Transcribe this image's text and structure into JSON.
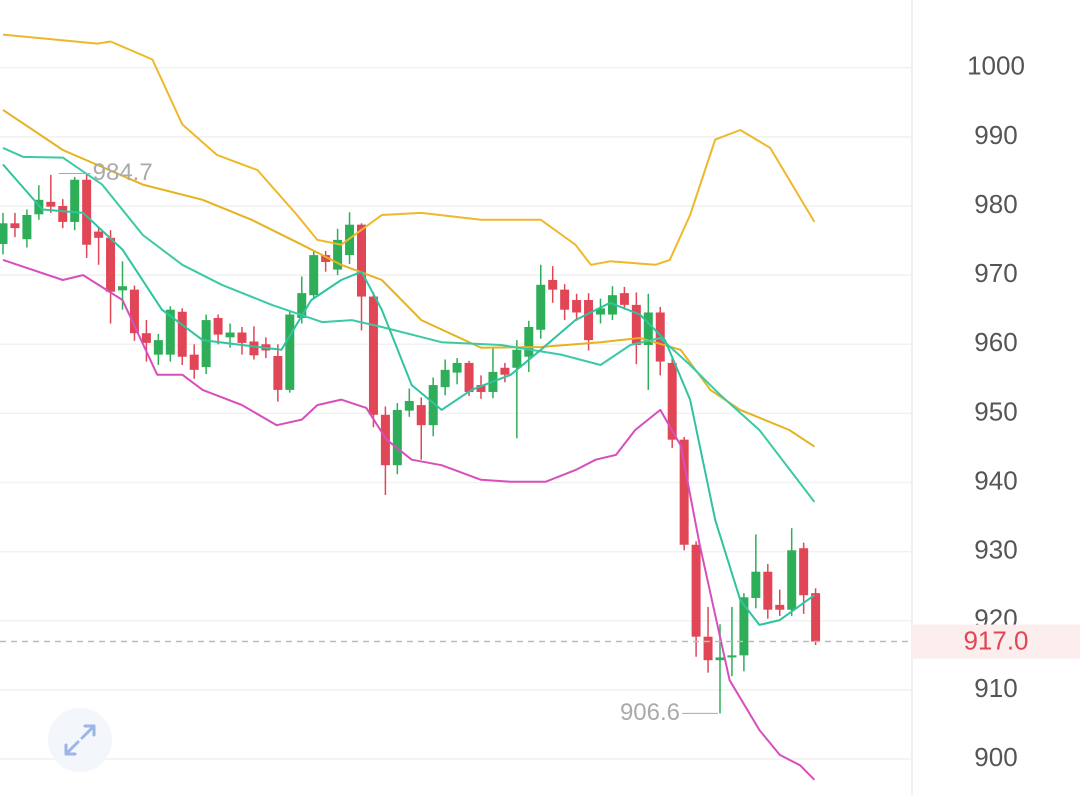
{
  "chart_data": {
    "type": "candlestick",
    "open": [
      974.5,
      977.5,
      975.2,
      978.8,
      980.6,
      980,
      977.7,
      983.8,
      976.3,
      975.4,
      967.8,
      967.9,
      961.6,
      958.5,
      958.5,
      964.7,
      958.5,
      956.7,
      963.8,
      961,
      961.7,
      960.4,
      960,
      958.3,
      953.4,
      963.8,
      967.1,
      972.9,
      970.8,
      972.9,
      977.3,
      966.9,
      949.8,
      942.5,
      950.4,
      951.2,
      948.3,
      953.8,
      955.9,
      957.3,
      954.1,
      953.1,
      956.6,
      956.6,
      958.2,
      962.1,
      969.3,
      967.9,
      966.4,
      966.4,
      964.3,
      964.3,
      967.4,
      965.7,
      959.9,
      964.6,
      957.3,
      946.2,
      931,
      917.7,
      914.3,
      914.7,
      915,
      923.3,
      927.1,
      922.3,
      921.6,
      930.5,
      924
    ],
    "high": [
      979,
      979,
      979.5,
      983,
      984.5,
      981,
      984.2,
      984.7,
      977,
      976.5,
      972,
      968.5,
      963.5,
      961.5,
      965.5,
      965.2,
      960,
      964.3,
      964.3,
      963,
      962.5,
      962.6,
      961,
      960,
      964.8,
      969.8,
      973.4,
      973.5,
      976.7,
      979.1,
      977.5,
      967.5,
      951,
      951.5,
      953.6,
      952.3,
      955.2,
      957.8,
      958,
      957.6,
      955.5,
      959.5,
      957.3,
      960.6,
      963.4,
      971.5,
      971.3,
      968.7,
      967.3,
      967.4,
      966.6,
      968.4,
      968.3,
      967.5,
      967.3,
      965.4,
      958,
      946.6,
      931.5,
      922,
      919.5,
      922,
      924,
      932.5,
      928.2,
      924.5,
      933.4,
      931.3,
      924.7
    ],
    "low": [
      973,
      975.5,
      974,
      978,
      979,
      976.8,
      976.5,
      972.5,
      971.5,
      963,
      965,
      960.5,
      957.5,
      957,
      957.5,
      957,
      955,
      955.7,
      960,
      959.5,
      958.5,
      957.8,
      958,
      951.7,
      953,
      963,
      966.5,
      970.5,
      970,
      971.6,
      962,
      948,
      938.2,
      941.2,
      949.5,
      943.3,
      946.7,
      952.6,
      954.2,
      952.5,
      952.1,
      952.2,
      954.5,
      946.4,
      956,
      960.8,
      966,
      963.5,
      963.4,
      959.1,
      963,
      963.5,
      965,
      957.1,
      953.4,
      955.5,
      945,
      930.2,
      914.8,
      912.5,
      906.6,
      912,
      912.7,
      921.8,
      920.3,
      920.7,
      920.7,
      921,
      916.5
    ],
    "close": [
      977.5,
      976.8,
      978.7,
      980.9,
      979.9,
      977.7,
      983.8,
      974.4,
      975.4,
      967.6,
      968.4,
      961.6,
      960.2,
      960.6,
      965,
      958.2,
      956.3,
      963.5,
      961.4,
      961.7,
      960.2,
      958.4,
      959.1,
      953.4,
      964.3,
      967.4,
      972.9,
      971.9,
      975.1,
      977.3,
      966.9,
      949.8,
      942.5,
      950.5,
      951.8,
      948.3,
      954.1,
      956.3,
      957.3,
      953.1,
      953.1,
      956,
      955.6,
      959.2,
      962.5,
      968.6,
      967.9,
      965,
      964.6,
      960.6,
      965.2,
      967.1,
      965.7,
      959.9,
      964.6,
      957.5,
      946.2,
      931,
      917.7,
      914.3,
      914.7,
      915,
      923.4,
      927.1,
      921.6,
      921.6,
      930.2,
      923.7,
      917
    ],
    "up_color": "#2fae5a",
    "down_color": "#e04656",
    "lines": [
      {
        "color": "#efb82a",
        "x": [
          0,
          7.9,
          9,
          12.5,
          15,
          17.9,
          21.3,
          24.6,
          26.3,
          28.3,
          31.7,
          35,
          40,
          45,
          47.9,
          49.2,
          50.8,
          54.6,
          55.8,
          57.5,
          59.6,
          61.7,
          64.2,
          67.9
        ],
        "values": [
          1004.8,
          1003.5,
          1003.8,
          1001.2,
          991.8,
          987.4,
          985.2,
          978.7,
          975.1,
          974.4,
          978.7,
          979,
          978,
          978,
          974.4,
          971.5,
          972,
          971.5,
          972.2,
          978.7,
          989.6,
          991,
          988.4,
          977.7
        ]
      },
      {
        "color": "#e6b21e",
        "x": [
          0,
          5,
          11.7,
          16.7,
          20.8,
          25,
          28.3,
          31.7,
          35,
          40,
          45,
          50,
          53.3,
          56.7,
          59.2,
          61.7,
          65.8,
          67.9
        ],
        "values": [
          993.9,
          988.1,
          983.1,
          980.9,
          978,
          974.4,
          971.5,
          969.3,
          963.5,
          959.5,
          959.6,
          960.3,
          960.9,
          959.2,
          953.4,
          950.5,
          947.6,
          945.2
        ]
      },
      {
        "color": "#3cc9a6",
        "x": [
          0,
          1.7,
          5,
          8.3,
          11.7,
          15,
          18.3,
          22.5,
          26.7,
          29.2,
          31.7,
          36.7,
          41.7,
          46.7,
          50,
          52.5,
          55,
          57.5,
          60,
          63.3,
          67.9
        ],
        "values": [
          988.4,
          987.1,
          987,
          983.1,
          975.8,
          971.5,
          968.6,
          965.7,
          963.2,
          963.5,
          962.5,
          960.3,
          959.9,
          958.5,
          957,
          959.9,
          960.9,
          957,
          952.7,
          947.6,
          937.2
        ]
      },
      {
        "color": "#2fc3a0",
        "x": [
          0,
          3.3,
          6.7,
          10,
          13.3,
          16.7,
          20,
          23.3,
          25.8,
          28.3,
          30,
          31.7,
          34.2,
          36.7,
          39.2,
          42.5,
          45,
          47.9,
          50.8,
          53.3,
          55.4,
          57.5,
          59.6,
          61.7,
          63.3,
          65,
          67.9
        ],
        "values": [
          986,
          979.5,
          979,
          973.7,
          965,
          960.6,
          959.9,
          959.2,
          966.4,
          969.3,
          970.5,
          965,
          954.1,
          950.5,
          953.4,
          955.6,
          959.2,
          963.5,
          966,
          964.3,
          960.6,
          952,
          934.6,
          923,
          919.4,
          920.1,
          923.7
        ]
      },
      {
        "color": "#d64fbd",
        "x": [
          0,
          5,
          6.7,
          10,
          12.9,
          15,
          16.7,
          20,
          22.9,
          25,
          26.3,
          28.3,
          30.4,
          32.1,
          34.2,
          36.7,
          40,
          42.5,
          45.4,
          47.9,
          49.6,
          51.3,
          52.9,
          55,
          56.7,
          58.3,
          60.8,
          63.3,
          65,
          66.7,
          67.9
        ],
        "values": [
          972.2,
          969.3,
          970,
          966.4,
          955.6,
          955.6,
          953.4,
          951.2,
          948.3,
          949.1,
          951.2,
          952,
          950.8,
          946.2,
          943.3,
          942.5,
          940.4,
          940.1,
          940.1,
          941.8,
          943.3,
          944,
          947.6,
          950.5,
          945.4,
          931,
          911.4,
          904.2,
          900.6,
          899.1,
          897
        ]
      }
    ],
    "ylim": [
      894.8,
      1009.8
    ],
    "yticks": [
      900,
      910,
      920,
      930,
      940,
      950,
      960,
      970,
      980,
      990,
      1000
    ],
    "grid": true,
    "high_label": 984.7,
    "low_label": 906.6,
    "last_price": {
      "value": 917,
      "label": "917.0"
    }
  }
}
